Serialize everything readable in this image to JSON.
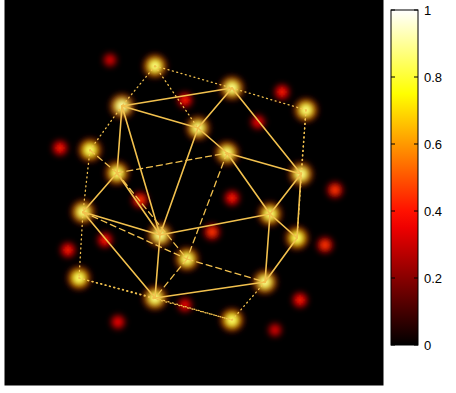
{
  "chart_data": {
    "type": "scatter",
    "tick_labels": false,
    "xlim": [
      0,
      378
    ],
    "ylim": [
      0,
      385
    ],
    "x": [
      150,
      227,
      117,
      301,
      193,
      85,
      222,
      112,
      296,
      78,
      265,
      155,
      292,
      182,
      74,
      260,
      150,
      227,
      330,
      320,
      295,
      55,
      63,
      113,
      180,
      253,
      135,
      227,
      207,
      100,
      277,
      180,
      270,
      105
    ],
    "values": [
      319,
      297,
      279,
      275,
      257,
      235,
      232,
      212,
      211,
      173,
      171,
      150,
      147,
      126,
      107,
      103,
      87,
      65,
      195,
      140,
      85,
      237,
      135,
      63,
      285,
      263,
      185,
      187,
      153,
      145,
      293,
      80,
      55,
      325
    ],
    "intensity": [
      0.95,
      0.97,
      1,
      0.95,
      0.97,
      0.93,
      0.96,
      0.95,
      0.97,
      0.96,
      0.95,
      0.98,
      0.93,
      0.95,
      0.93,
      0.97,
      0.96,
      0.93,
      0.5,
      0.5,
      0.45,
      0.45,
      0.45,
      0.4,
      0.45,
      0.4,
      0.5,
      0.45,
      0.5,
      0.45,
      0.45,
      0.4,
      0.35,
      0.35
    ],
    "color": "#f2c14e",
    "edges": [
      {
        "from": 2,
        "to": 1,
        "line_style": "solid"
      },
      {
        "from": 2,
        "to": 4,
        "line_style": "solid"
      },
      {
        "from": 4,
        "to": 1,
        "line_style": "solid"
      },
      {
        "from": 1,
        "to": 8,
        "line_style": "solid"
      },
      {
        "from": 4,
        "to": 6,
        "line_style": "solid"
      },
      {
        "from": 6,
        "to": 8,
        "line_style": "solid"
      },
      {
        "from": 2,
        "to": 11,
        "line_style": "solid"
      },
      {
        "from": 4,
        "to": 11,
        "line_style": "solid"
      },
      {
        "from": 7,
        "to": 9,
        "line_style": "solid"
      },
      {
        "from": 9,
        "to": 11,
        "line_style": "solid"
      },
      {
        "from": 11,
        "to": 10,
        "line_style": "solid"
      },
      {
        "from": 10,
        "to": 8,
        "line_style": "solid"
      },
      {
        "from": 6,
        "to": 10,
        "line_style": "solid"
      },
      {
        "from": 8,
        "to": 12,
        "line_style": "solid"
      },
      {
        "from": 10,
        "to": 12,
        "line_style": "solid"
      },
      {
        "from": 12,
        "to": 15,
        "line_style": "solid"
      },
      {
        "from": 10,
        "to": 15,
        "line_style": "solid"
      },
      {
        "from": 11,
        "to": 16,
        "line_style": "solid"
      },
      {
        "from": 9,
        "to": 16,
        "line_style": "solid"
      },
      {
        "from": 16,
        "to": 15,
        "line_style": "solid"
      },
      {
        "from": 2,
        "to": 7,
        "line_style": "solid"
      },
      {
        "from": 7,
        "to": 11,
        "line_style": "solid"
      },
      {
        "from": 7,
        "to": 6,
        "line_style": "dashed"
      },
      {
        "from": 7,
        "to": 13,
        "line_style": "dashed"
      },
      {
        "from": 13,
        "to": 15,
        "line_style": "dashed"
      },
      {
        "from": 13,
        "to": 16,
        "line_style": "dashed"
      },
      {
        "from": 6,
        "to": 13,
        "line_style": "dashed"
      },
      {
        "from": 5,
        "to": 7,
        "line_style": "dashed"
      },
      {
        "from": 9,
        "to": 13,
        "line_style": "dashed"
      },
      {
        "from": 0,
        "to": 2,
        "line_style": "dotted"
      },
      {
        "from": 0,
        "to": 1,
        "line_style": "dotted"
      },
      {
        "from": 1,
        "to": 3,
        "line_style": "dotted"
      },
      {
        "from": 3,
        "to": 8,
        "line_style": "dotted"
      },
      {
        "from": 5,
        "to": 9,
        "line_style": "dotted"
      },
      {
        "from": 9,
        "to": 14,
        "line_style": "dotted"
      },
      {
        "from": 14,
        "to": 16,
        "line_style": "dotted"
      },
      {
        "from": 16,
        "to": 17,
        "line_style": "dotted"
      },
      {
        "from": 17,
        "to": 15,
        "line_style": "dotted"
      },
      {
        "from": 0,
        "to": 4,
        "line_style": "dotted"
      },
      {
        "from": 2,
        "to": 5,
        "line_style": "dotted"
      },
      {
        "from": 3,
        "to": 12,
        "line_style": "dotted"
      },
      {
        "from": 14,
        "to": 17,
        "line_style": "dotted"
      }
    ],
    "colorbar": {
      "range": [
        0,
        1
      ],
      "ticks": [
        0,
        0.2,
        0.4,
        0.6,
        0.8,
        1
      ]
    }
  }
}
